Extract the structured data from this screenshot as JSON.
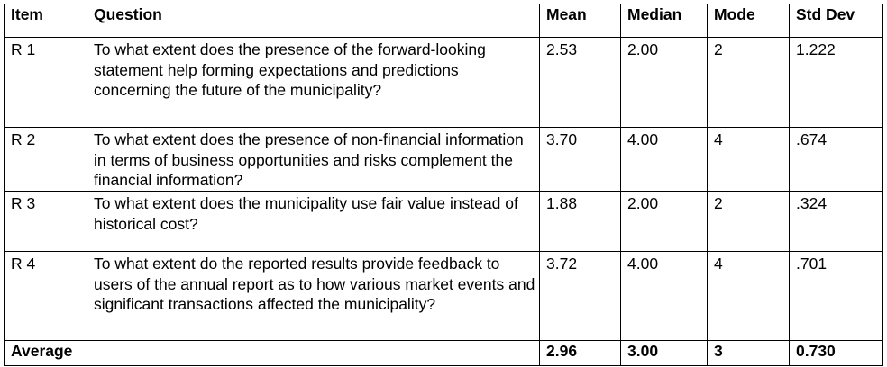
{
  "table": {
    "headers": {
      "item": "Item",
      "question": "Question",
      "mean": "Mean",
      "median": "Median",
      "mode": "Mode",
      "std_dev": "Std Dev"
    },
    "rows": [
      {
        "item": "R 1",
        "question": "To what extent does the presence of the forward-looking statement help forming expectations and predictions concerning the future of the municipality?",
        "mean": "2.53",
        "median": "2.00",
        "mode": "2",
        "std_dev": "1.222"
      },
      {
        "item": "R 2",
        "question": "To what extent does the presence of non-financial information in terms of business opportunities and risks complement the financial information?",
        "mean": "3.70",
        "median": "4.00",
        "mode": "4",
        "std_dev": ".674"
      },
      {
        "item": "R 3",
        "question": "To what extent does the municipality use fair value instead of historical cost?",
        "mean": "1.88",
        "median": "2.00",
        "mode": "2",
        "std_dev": ".324"
      },
      {
        "item": "R 4",
        "question": "To what extent do the reported results provide feedback to users of the annual report as to how various market events and significant transactions affected the municipality?",
        "mean": "3.72",
        "median": "4.00",
        "mode": "4",
        "std_dev": ".701"
      }
    ],
    "average": {
      "label": "Average",
      "mean": "2.96",
      "median": "3.00",
      "mode": "3",
      "std_dev": "0.730"
    }
  }
}
